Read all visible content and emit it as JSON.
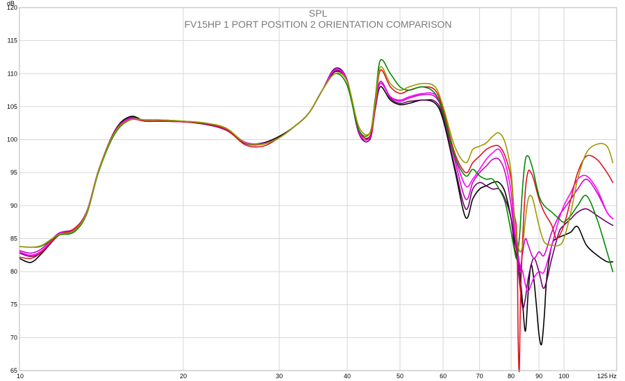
{
  "chart_data": {
    "type": "line",
    "title": "SPL",
    "subtitle": "FV15HP 1 PORT POSITION 2 ORIENTATION COMPARISON",
    "xlabel": "Hz",
    "ylabel": "dB",
    "x_scale": "log",
    "xlim": [
      10,
      125
    ],
    "ylim": [
      65,
      120
    ],
    "grid": true,
    "x_ticks": [
      10,
      20,
      30,
      40,
      50,
      60,
      70,
      80,
      90,
      100,
      125
    ],
    "x_tick_labels": [
      "10",
      "20",
      "30",
      "40",
      "50",
      "60",
      "70",
      "80",
      "90",
      "100",
      "125"
    ],
    "y_ticks": [
      65,
      70,
      75,
      80,
      85,
      90,
      95,
      100,
      105,
      110,
      115,
      120
    ],
    "y_tick_labels": [
      "65",
      "70",
      "75",
      "80",
      "85",
      "90",
      "95",
      "100",
      "105",
      "110",
      "115",
      "120"
    ],
    "series": [
      {
        "color": "#000000",
        "x": [
          10,
          10.5,
          11,
          11.8,
          12.6,
          13.3,
          14,
          15,
          16,
          17,
          18,
          20,
          22,
          24,
          26,
          28,
          30,
          32,
          34,
          36,
          38,
          40,
          42,
          44,
          45,
          46,
          48,
          50,
          52,
          55,
          58,
          60,
          63,
          66,
          68,
          70,
          72,
          74,
          76,
          78,
          80,
          81,
          82,
          83,
          84,
          85,
          86,
          87,
          88,
          89,
          90,
          91,
          92,
          93,
          95,
          97,
          100,
          103,
          106,
          110,
          115,
          120,
          123
        ],
        "values": [
          82.0,
          81.4,
          82.8,
          85.5,
          86.5,
          89.0,
          95.5,
          101.5,
          103.5,
          102.8,
          102.8,
          102.7,
          102.3,
          101.5,
          99.5,
          99.5,
          100.5,
          102.0,
          104.0,
          107.5,
          110.3,
          108.8,
          101.0,
          100.5,
          104.5,
          108.0,
          106.0,
          105.3,
          105.5,
          106.0,
          105.5,
          103.0,
          95.5,
          88.2,
          91.0,
          92.5,
          93.0,
          93.5,
          93.5,
          92.0,
          88.0,
          85.0,
          83.0,
          80.0,
          75.0,
          71.0,
          77.0,
          81.0,
          79.0,
          75.0,
          70.5,
          69.0,
          73.0,
          79.0,
          84.0,
          85.0,
          85.5,
          86.0,
          86.8,
          84.0,
          82.5,
          81.5,
          81.5
        ]
      },
      {
        "color": "#6b006b",
        "x": [
          10,
          10.5,
          11,
          11.8,
          12.6,
          13.3,
          14,
          15,
          16,
          17,
          18,
          20,
          22,
          24,
          26,
          28,
          30,
          32,
          34,
          36,
          38,
          40,
          42,
          44,
          45,
          46,
          48,
          50,
          52,
          55,
          58,
          60,
          63,
          66,
          68,
          70,
          72,
          74,
          76,
          78,
          80,
          81,
          82,
          83,
          84,
          85,
          86,
          88,
          90,
          92,
          95,
          98,
          100,
          103,
          106,
          110,
          115,
          120,
          123
        ],
        "values": [
          82.8,
          82.3,
          83.0,
          85.5,
          86.3,
          89.0,
          95.5,
          101.3,
          103.3,
          102.8,
          102.8,
          102.7,
          102.3,
          101.4,
          99.4,
          99.3,
          100.3,
          102.0,
          104.0,
          107.5,
          110.8,
          109.0,
          101.0,
          100.0,
          104.5,
          108.8,
          106.3,
          105.5,
          105.8,
          106.0,
          105.8,
          103.5,
          96.0,
          89.5,
          92.5,
          93.5,
          93.0,
          92.5,
          92.5,
          91.0,
          88.0,
          84.0,
          82.0,
          78.0,
          74.5,
          76.0,
          79.0,
          82.0,
          80.0,
          77.5,
          82.0,
          86.0,
          87.0,
          88.0,
          89.0,
          89.5,
          88.5,
          87.5,
          87.0
        ]
      },
      {
        "color": "#cc00cc",
        "x": [
          10,
          10.5,
          11,
          11.8,
          12.6,
          13.3,
          14,
          15,
          16,
          17,
          18,
          20,
          22,
          24,
          26,
          28,
          30,
          32,
          34,
          36,
          38,
          40,
          42,
          44,
          45,
          46,
          48,
          50,
          52,
          55,
          58,
          60,
          63,
          66,
          68,
          70,
          72,
          74,
          76,
          78,
          80,
          81,
          82,
          83,
          84,
          85,
          86,
          88,
          90,
          92,
          95,
          98,
          100,
          103,
          106,
          110,
          115,
          120,
          123
        ],
        "values": [
          83.2,
          82.8,
          83.5,
          85.8,
          86.5,
          89.2,
          95.6,
          101.4,
          103.2,
          102.8,
          102.8,
          102.7,
          102.4,
          101.5,
          99.5,
          99.4,
          100.3,
          102.0,
          104.0,
          107.5,
          110.5,
          108.8,
          101.2,
          100.3,
          104.8,
          108.8,
          106.5,
          105.8,
          106.3,
          106.8,
          106.5,
          104.0,
          97.0,
          91.0,
          93.5,
          95.0,
          96.0,
          97.0,
          97.0,
          95.0,
          90.0,
          86.0,
          83.0,
          80.0,
          83.0,
          85.0,
          84.0,
          82.0,
          83.0,
          82.5,
          86.0,
          88.5,
          89.5,
          91.0,
          92.5,
          94.0,
          92.0,
          89.0,
          88.0
        ]
      },
      {
        "color": "#ff00ff",
        "x": [
          10,
          10.5,
          11,
          11.8,
          12.6,
          13.3,
          14,
          15,
          16,
          17,
          18,
          20,
          22,
          24,
          26,
          28,
          30,
          32,
          34,
          36,
          38,
          40,
          42,
          44,
          45,
          46,
          48,
          50,
          52,
          55,
          58,
          60,
          63,
          66,
          68,
          70,
          72,
          74,
          76,
          78,
          80,
          81,
          82,
          83,
          84,
          85,
          86,
          88,
          90,
          92,
          95,
          98,
          100,
          103,
          106,
          110,
          115,
          120,
          123
        ],
        "values": [
          83.0,
          82.5,
          83.2,
          85.6,
          86.4,
          89.1,
          95.5,
          101.3,
          103.2,
          102.8,
          102.8,
          102.7,
          102.4,
          101.5,
          99.6,
          99.4,
          100.3,
          102.0,
          104.0,
          107.5,
          110.6,
          108.9,
          101.2,
          100.3,
          104.7,
          108.5,
          106.5,
          106.0,
          106.5,
          107.0,
          106.8,
          104.2,
          97.5,
          93.0,
          94.0,
          95.5,
          97.0,
          98.0,
          98.5,
          96.5,
          92.0,
          87.0,
          84.0,
          81.0,
          80.0,
          78.0,
          77.0,
          79.0,
          80.0,
          80.0,
          84.0,
          88.0,
          90.0,
          92.0,
          94.0,
          94.5,
          92.5,
          89.0,
          88.0
        ]
      },
      {
        "color": "#e01020",
        "x": [
          10,
          10.5,
          11,
          11.8,
          12.6,
          13.3,
          14,
          15,
          16,
          17,
          18,
          20,
          22,
          24,
          26,
          28,
          30,
          32,
          34,
          36,
          38,
          40,
          42,
          44,
          45,
          46,
          48,
          50,
          52,
          55,
          58,
          60,
          63,
          66,
          68,
          70,
          72,
          74,
          76,
          78,
          80,
          81,
          82,
          82.4,
          82.8,
          83.2,
          84,
          85,
          86,
          87,
          88,
          90,
          92,
          95,
          97,
          100,
          103,
          106,
          110,
          115,
          120,
          123
        ],
        "values": [
          82.2,
          82.0,
          83.0,
          85.5,
          86.5,
          89.0,
          95.5,
          101.3,
          103.0,
          102.8,
          102.8,
          102.7,
          102.4,
          101.5,
          99.2,
          99.0,
          100.3,
          102.0,
          104.0,
          107.5,
          110.0,
          108.8,
          101.5,
          100.5,
          104.8,
          110.5,
          108.0,
          107.0,
          107.5,
          108.0,
          107.5,
          104.5,
          98.0,
          95.0,
          96.5,
          97.5,
          98.5,
          99.0,
          99.0,
          97.5,
          94.0,
          89.0,
          85.0,
          70.0,
          65.0,
          75.0,
          85.0,
          92.5,
          95.2,
          95.0,
          94.0,
          91.0,
          89.0,
          87.0,
          85.0,
          87.0,
          91.0,
          95.0,
          97.5,
          97.0,
          95.0,
          93.5
        ]
      },
      {
        "color": "#008800",
        "x": [
          10,
          10.5,
          11,
          11.8,
          12.6,
          13.3,
          14,
          15,
          16,
          17,
          18,
          20,
          22,
          24,
          26,
          28,
          30,
          32,
          34,
          36,
          38,
          40,
          42,
          44,
          45,
          46,
          48,
          50,
          52,
          55,
          58,
          60,
          63,
          66,
          68,
          70,
          72,
          74,
          76,
          78,
          80,
          81,
          82,
          83,
          84,
          85,
          86,
          87,
          88,
          90,
          92,
          95,
          98,
          100,
          103,
          106,
          110,
          115,
          120,
          123
        ],
        "values": [
          83.8,
          83.7,
          83.9,
          85.5,
          86.0,
          88.8,
          95.3,
          101.0,
          103.0,
          103.0,
          103.0,
          102.8,
          102.5,
          101.7,
          99.5,
          99.3,
          100.3,
          102.0,
          104.0,
          107.5,
          110.0,
          108.2,
          101.5,
          101.0,
          106.0,
          112.0,
          110.0,
          108.0,
          107.5,
          108.0,
          107.0,
          104.0,
          97.5,
          94.5,
          95.5,
          94.5,
          94.0,
          94.0,
          92.5,
          90.5,
          86.0,
          83.5,
          82.0,
          86.0,
          93.0,
          97.0,
          97.5,
          96.5,
          95.0,
          91.5,
          90.0,
          89.0,
          88.0,
          87.5,
          88.5,
          90.0,
          91.5,
          88.0,
          83.0,
          80.0
        ]
      },
      {
        "color": "#999900",
        "x": [
          10,
          10.5,
          11,
          11.8,
          12.6,
          13.3,
          14,
          15,
          16,
          17,
          18,
          20,
          22,
          24,
          26,
          28,
          30,
          32,
          34,
          36,
          38,
          40,
          42,
          44,
          45,
          46,
          48,
          50,
          52,
          55,
          58,
          60,
          63,
          66,
          68,
          70,
          72,
          74,
          76,
          78,
          80,
          81,
          82,
          83,
          84,
          85,
          86,
          87,
          88,
          90,
          92,
          95,
          98,
          100,
          103,
          106,
          110,
          115,
          120,
          123
        ],
        "values": [
          83.8,
          83.7,
          84.0,
          85.6,
          86.2,
          89.0,
          95.5,
          101.2,
          103.0,
          103.0,
          103.0,
          102.8,
          102.5,
          101.7,
          99.5,
          99.3,
          100.3,
          102.0,
          104.0,
          107.5,
          110.0,
          108.8,
          102.0,
          101.0,
          105.5,
          111.0,
          108.5,
          107.5,
          108.0,
          108.5,
          108.0,
          105.0,
          99.0,
          96.5,
          98.5,
          99.0,
          99.5,
          100.5,
          101.0,
          99.5,
          95.0,
          89.0,
          85.0,
          83.0,
          84.0,
          88.0,
          91.0,
          91.5,
          90.5,
          87.0,
          84.5,
          84.0,
          84.0,
          85.0,
          89.0,
          94.0,
          98.0,
          99.3,
          99.0,
          96.5
        ]
      }
    ]
  }
}
